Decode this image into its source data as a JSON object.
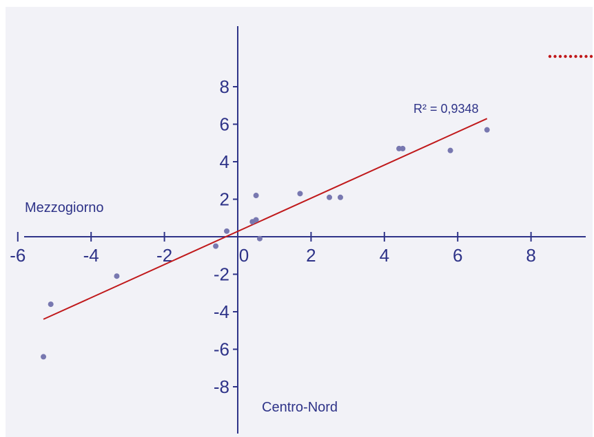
{
  "chart_data": {
    "type": "scatter",
    "xlim": [
      -6,
      9.4
    ],
    "ylim": [
      -10,
      12
    ],
    "x_ticks": [
      -6,
      -4,
      -2,
      0,
      2,
      4,
      6,
      8
    ],
    "y_ticks": [
      -8,
      -6,
      -4,
      -2,
      2,
      4,
      6,
      8
    ],
    "x_tick_labels": [
      "-6",
      "-4",
      "-2",
      "0",
      "2",
      "4",
      "6",
      "8"
    ],
    "y_tick_labels": [
      "-8",
      "-6",
      "-4",
      "-2",
      "2",
      "4",
      "6",
      "8"
    ],
    "axis_label_left": "Mezzogiorno",
    "axis_label_bottom": "Centro-Nord",
    "r_squared_label": "R² = 0,9348",
    "points": [
      {
        "x": -5.3,
        "y": -6.4
      },
      {
        "x": -5.1,
        "y": -3.6
      },
      {
        "x": -3.3,
        "y": -2.1
      },
      {
        "x": -0.6,
        "y": -0.5
      },
      {
        "x": -0.3,
        "y": 0.3
      },
      {
        "x": 0.4,
        "y": 0.8
      },
      {
        "x": 0.5,
        "y": 2.2
      },
      {
        "x": 0.5,
        "y": 0.9
      },
      {
        "x": 0.6,
        "y": -0.1
      },
      {
        "x": 1.7,
        "y": 2.3
      },
      {
        "x": 2.5,
        "y": 2.1
      },
      {
        "x": 2.8,
        "y": 2.1
      },
      {
        "x": 4.4,
        "y": 4.7
      },
      {
        "x": 4.5,
        "y": 4.7
      },
      {
        "x": 5.8,
        "y": 4.6
      },
      {
        "x": 6.8,
        "y": 5.7
      }
    ],
    "trendline": {
      "x": [
        -5.3,
        6.8
      ],
      "y": [
        -4.4,
        6.3
      ]
    },
    "colors": {
      "background": "#f2f2f7",
      "axis": "#2e3388",
      "points": "#7878b0",
      "trendline": "#c0191b",
      "accent_dots": "#c0191b"
    }
  }
}
